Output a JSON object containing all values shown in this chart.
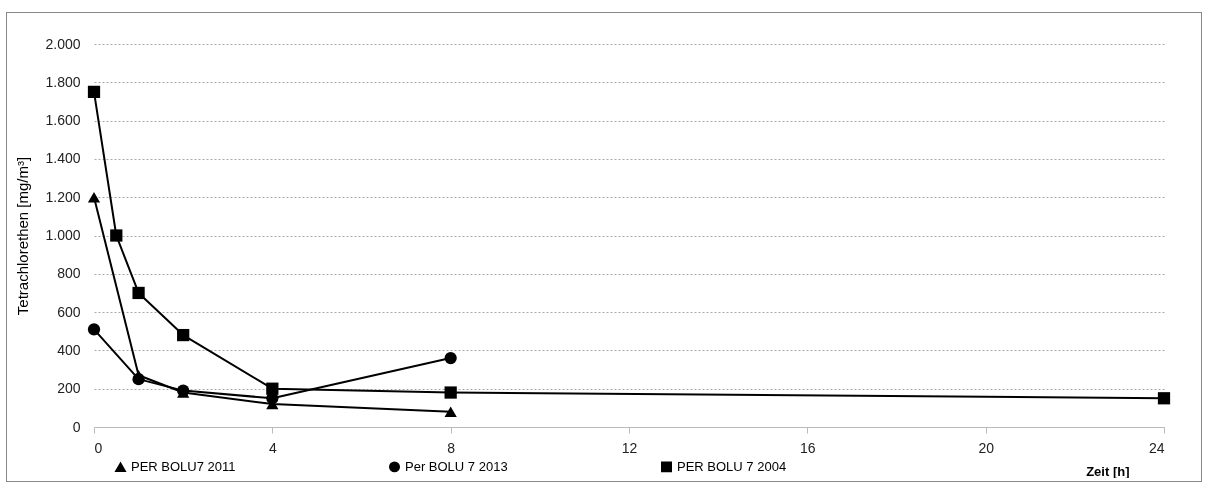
{
  "chart_data": {
    "type": "line",
    "xlabel": "Zeit [h]",
    "ylabel": "Tetrachlorethen [mg/m³]",
    "xlim": [
      0,
      24
    ],
    "xticks": [
      0,
      4,
      8,
      12,
      16,
      20,
      24
    ],
    "ylim": [
      0,
      2000
    ],
    "yticks": [
      0,
      200,
      400,
      600,
      800,
      {
        "value": 1000,
        "label": "1.000"
      },
      {
        "value": 1200,
        "label": "1.200"
      },
      {
        "value": 1400,
        "label": "1.400"
      },
      {
        "value": 1600,
        "label": "1.600"
      },
      {
        "value": 1800,
        "label": "1.800"
      },
      {
        "value": 2000,
        "label": "2.000"
      }
    ],
    "grid": "y",
    "legend": "bottom left",
    "line_style": "solid",
    "series": [
      {
        "name": "PER BOLU7 2011",
        "color": "#000000",
        "marker": "triangle",
        "x": [
          0,
          1,
          2,
          4,
          8
        ],
        "values": [
          1200,
          270,
          180,
          120,
          80
        ]
      },
      {
        "name": "Per BOLU 7 2013",
        "color": "#000000",
        "marker": "circle",
        "x": [
          0,
          1,
          2,
          4,
          8
        ],
        "values": [
          510,
          250,
          190,
          150,
          360
        ]
      },
      {
        "name": "PER BOLU 7 2004",
        "color": "#000000",
        "marker": "square",
        "x": [
          0,
          0.5,
          1,
          2,
          4,
          8,
          24
        ],
        "values": [
          1750,
          1000,
          700,
          480,
          200,
          180,
          150
        ]
      }
    ]
  }
}
